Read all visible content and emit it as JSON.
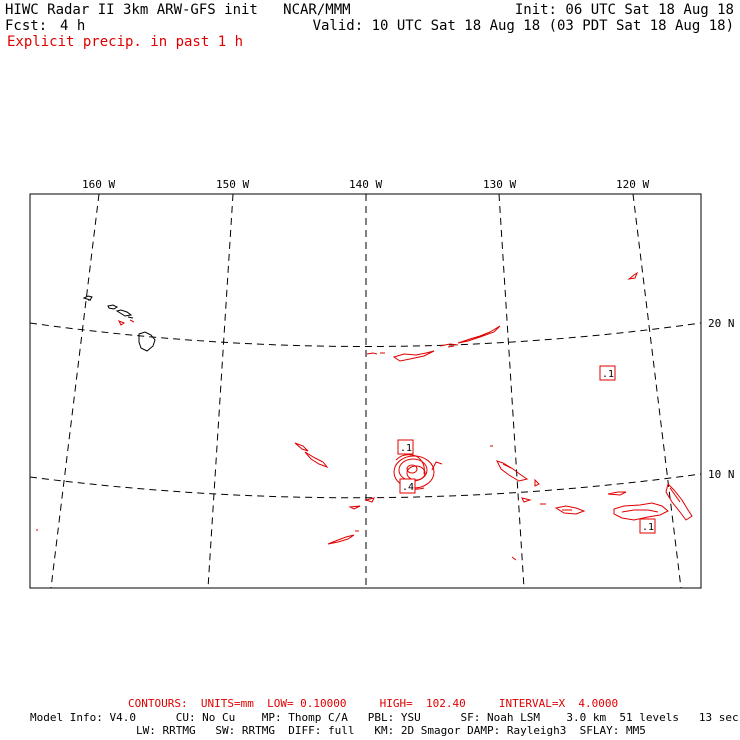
{
  "header": {
    "title": "HIWC Radar II 3km ARW-GFS init   NCAR/MMM",
    "init": "Init: 06 UTC Sat 18 Aug 18",
    "fcst_label": "Fcst:",
    "fcst_value": "4 h",
    "valid": "Valid: 10 UTC Sat 18 Aug 18 (03 PDT Sat 18 Aug 18)",
    "field": "Explicit precip. in past 1 h"
  },
  "map": {
    "longitude_labels": [
      "160 W",
      "150 W",
      "140 W",
      "130 W",
      "120 W"
    ],
    "latitude_labels": [
      "20 N",
      "10 N"
    ],
    "contour_labels": [
      ".1",
      ".1",
      ".4",
      ".1"
    ]
  },
  "footer": {
    "contours": "CONTOURS:  UNITS=mm  LOW= 0.10000     HIGH=  102.40     INTERVAL=X  4.0000",
    "model_line1": "Model Info: V4.0      CU: No Cu    MP: Thomp C/A   PBL: YSU      SF: Noah LSM    3.0 km  51 levels   13 sec",
    "model_line2": "                LW: RRTMG   SW: RRTMG  DIFF: full   KM: 2D Smagor DAMP: Rayleigh3  SFLAY: MM5"
  },
  "colors": {
    "precip": "#e00000",
    "coast": "#000000",
    "grid": "#000000"
  }
}
